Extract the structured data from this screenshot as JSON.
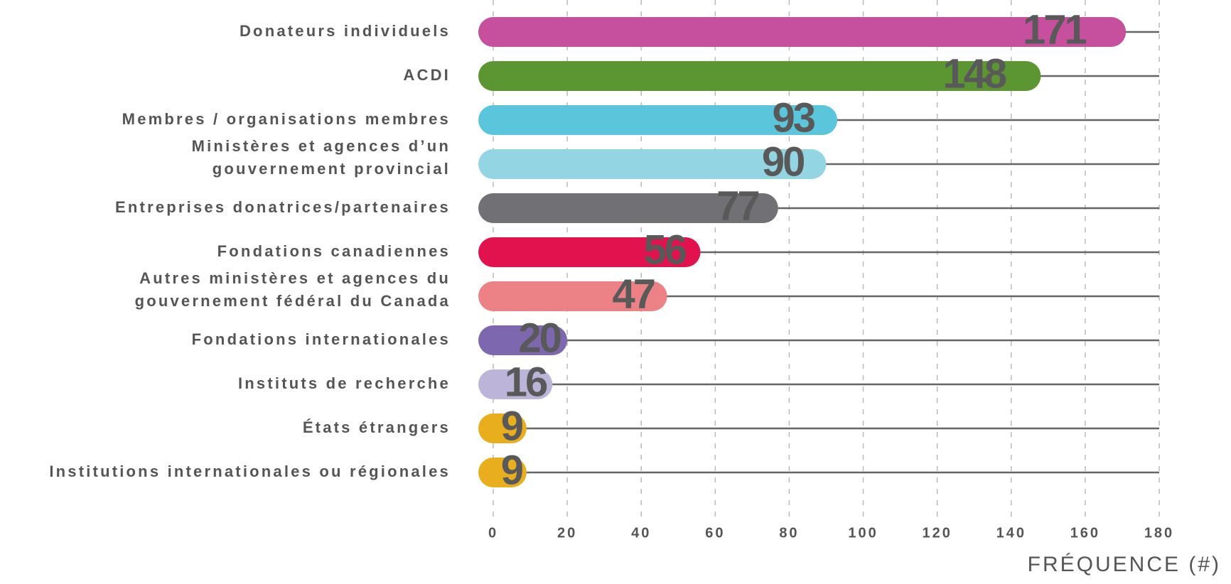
{
  "chart_data": {
    "type": "bar",
    "orientation": "horizontal",
    "categories": [
      [
        "Donateurs individuels"
      ],
      [
        "ACDI"
      ],
      [
        "Membres / organisations membres"
      ],
      [
        "Ministères et agences d’un",
        "gouvernement provincial"
      ],
      [
        "Entreprises donatrices/partenaires"
      ],
      [
        "Fondations canadiennes"
      ],
      [
        "Autres ministères et agences du",
        "gouvernement fédéral du Canada"
      ],
      [
        "Fondations internationales"
      ],
      [
        "Instituts de recherche"
      ],
      [
        "États étrangers"
      ],
      [
        "Institutions internationales ou régionales"
      ]
    ],
    "values": [
      171,
      148,
      93,
      90,
      77,
      56,
      47,
      20,
      16,
      9,
      9
    ],
    "colors": [
      "#c64f9e",
      "#5b9632",
      "#5bc5db",
      "#93d5e3",
      "#717074",
      "#e2124f",
      "#ec8285",
      "#7d68b0",
      "#bcb5d9",
      "#e8ae1e",
      "#e8ae1e"
    ],
    "xlabel": "FRÉQUENCE (#)",
    "xlim": [
      0,
      180
    ],
    "xticks": [
      0,
      20,
      40,
      60,
      80,
      100,
      120,
      140,
      160,
      180
    ],
    "grid": true
  }
}
